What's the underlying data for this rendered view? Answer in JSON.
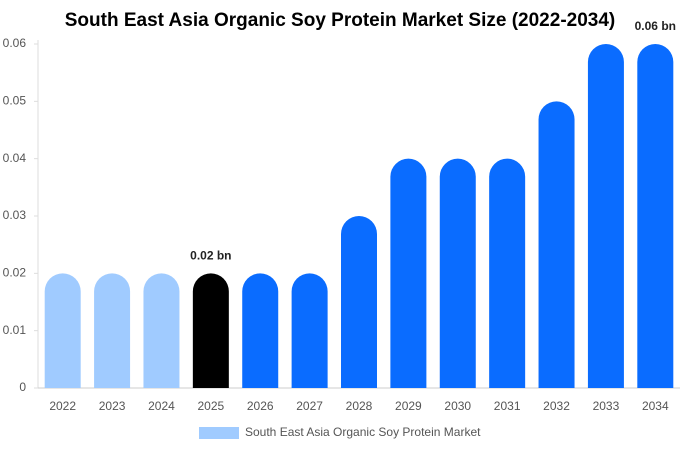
{
  "chart_data": {
    "type": "bar",
    "title": "South East Asia Organic Soy Protein Market Size (2022-2034)",
    "categories": [
      "2022",
      "2023",
      "2024",
      "2025",
      "2026",
      "2027",
      "2028",
      "2029",
      "2030",
      "2031",
      "2032",
      "2033",
      "2034"
    ],
    "series": [
      {
        "name": "South East Asia Organic Soy Protein Market",
        "color": "#a0cbff",
        "colors": [
          "#a0cbff",
          "#a0cbff",
          "#a0cbff",
          "#000000",
          "#0a6cff",
          "#0a6cff",
          "#0a6cff",
          "#0a6cff",
          "#0a6cff",
          "#0a6cff",
          "#0a6cff",
          "#0a6cff",
          "#0a6cff"
        ],
        "values": [
          0.02,
          0.02,
          0.02,
          0.02,
          0.02,
          0.02,
          0.03,
          0.04,
          0.04,
          0.04,
          0.05,
          0.06,
          0.06
        ],
        "value_labels": [
          null,
          null,
          null,
          "0.02 bn",
          null,
          null,
          null,
          null,
          null,
          null,
          null,
          null,
          "0.06 bn"
        ]
      }
    ],
    "ylim": [
      0,
      0.06
    ],
    "yticks": [
      0,
      0.01,
      0.02,
      0.03,
      0.04,
      0.05,
      0.06
    ],
    "grid": false,
    "legend": "bottom"
  }
}
